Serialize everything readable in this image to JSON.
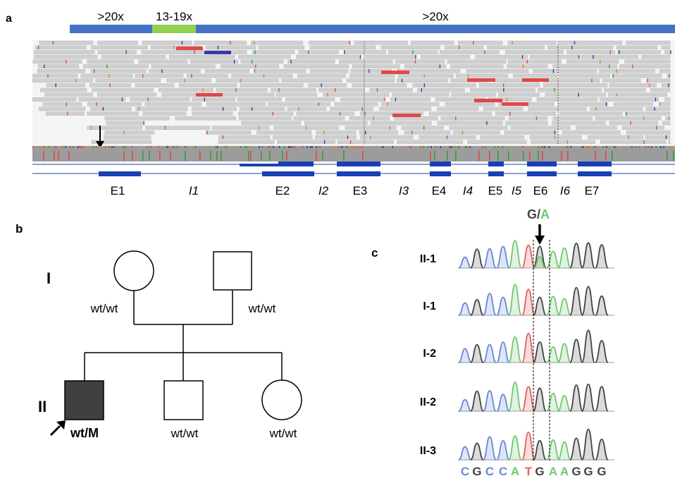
{
  "panel_a": {
    "label": "a",
    "coverage": [
      {
        "label": ">20x",
        "color": "#4472c4"
      },
      {
        "label": "13-19x",
        "color": "#92d050"
      },
      {
        "label": ">20x",
        "color": "#4472c4"
      }
    ],
    "regions": [
      "E1",
      "I1",
      "E2",
      "I2",
      "E3",
      "I3",
      "E4",
      "I4",
      "E5",
      "I5",
      "E6",
      "I6",
      "E7"
    ],
    "colors": {
      "read": "#cfcfcf",
      "read_border": "#a9a9a9",
      "insert": "#e04848",
      "insert_blue": "#3a3aa8",
      "gene": "#1a3fb5"
    }
  },
  "panel_b": {
    "label": "b",
    "generations": [
      "I",
      "II"
    ],
    "gen1": [
      {
        "id": "I-1",
        "genotype": "wt/wt",
        "sex": "female"
      },
      {
        "id": "I-2",
        "genotype": "wt/wt",
        "sex": "male"
      }
    ],
    "gen2": [
      {
        "id": "II-1",
        "genotype": "wt/M",
        "sex": "male",
        "affected": true,
        "proband": true
      },
      {
        "id": "II-2",
        "genotype": "wt/wt",
        "sex": "male"
      },
      {
        "id": "II-3",
        "genotype": "wt/wt",
        "sex": "female"
      }
    ],
    "colors": {
      "affected": "#404040"
    }
  },
  "panel_c": {
    "label": "c",
    "variant": {
      "ref": "G",
      "sep": "/",
      "alt": "A"
    },
    "rows": [
      "II-1",
      "I-1",
      "I-2",
      "II-2",
      "II-3"
    ],
    "sequence": [
      "C",
      "G",
      "C",
      "C",
      "A",
      "T",
      "G",
      "A",
      "A",
      "G",
      "G",
      "G"
    ],
    "base_colors": {
      "A": "#70c770",
      "C": "#6a87d6",
      "G": "#444444",
      "T": "#e26060"
    }
  }
}
